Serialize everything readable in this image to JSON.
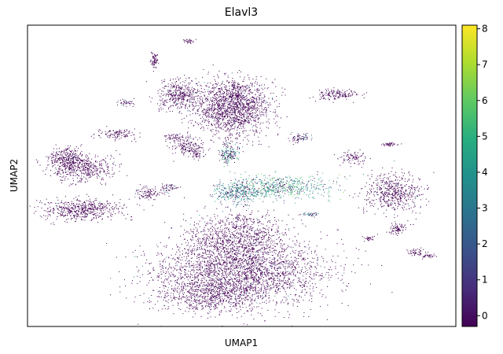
{
  "chart_data": {
    "type": "scatter",
    "title": "Elavl3",
    "xlabel": "UMAP1",
    "ylabel": "UMAP2",
    "grid": false,
    "colorbar": {
      "colormap": "viridis",
      "range": [
        -0.3,
        8.1
      ],
      "ticks": [
        0,
        1,
        2,
        3,
        4,
        5,
        6,
        7,
        8
      ],
      "tick_labels": [
        "0",
        "1",
        "2",
        "3",
        "4",
        "5",
        "6",
        "7",
        "8"
      ]
    },
    "colors": {
      "low": "#440154",
      "mid": "#21918c",
      "high": "#fde725"
    }
  }
}
